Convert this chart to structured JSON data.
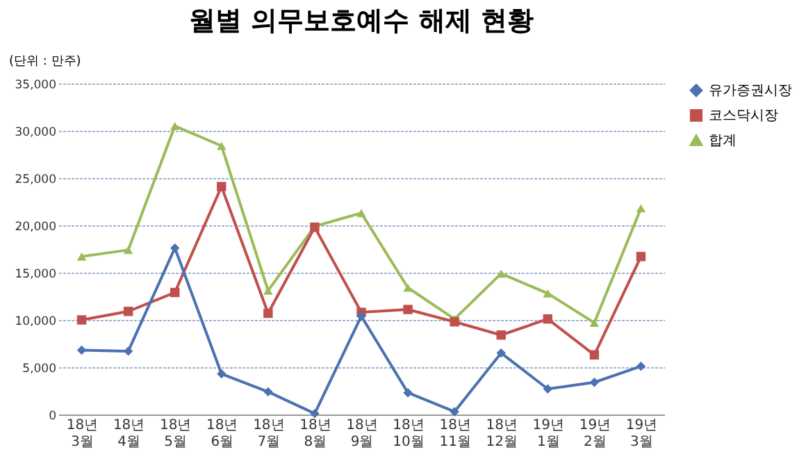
{
  "chart_data": {
    "type": "line",
    "title": "월별 의무보호예수 해제 현황",
    "ylabel": "(단위 : 만주)",
    "categories": [
      "18년 3월",
      "18년 4월",
      "18년 5월",
      "18년 6월",
      "18년 7월",
      "18년 8월",
      "18년 9월",
      "18년 10월",
      "18년 11월",
      "18년 12월",
      "19년 1월",
      "19년 2월",
      "19년 3월"
    ],
    "series": [
      {
        "name": "유가증권시장",
        "color": "#4a72b0",
        "marker": "diamond",
        "values": [
          6800,
          6700,
          17600,
          4300,
          2400,
          100,
          10400,
          2300,
          300,
          6500,
          2700,
          3400,
          5100
        ]
      },
      {
        "name": "코스닥시장",
        "color": "#c0504d",
        "marker": "square",
        "values": [
          10000,
          10900,
          12900,
          24100,
          10700,
          19800,
          10800,
          11100,
          9800,
          8400,
          10100,
          6300,
          16700
        ]
      },
      {
        "name": "합계",
        "color": "#9bbb59",
        "marker": "triangle",
        "values": [
          16700,
          17400,
          30500,
          28400,
          13100,
          19900,
          21300,
          13400,
          10100,
          14900,
          12800,
          9700,
          21800
        ]
      }
    ],
    "ylim": [
      0,
      35000
    ],
    "yticks": [
      0,
      {
        "value": 5000,
        "label": "5,000"
      },
      {
        "value": 10000,
        "label": "10,000"
      },
      {
        "value": 15000,
        "label": "15,000"
      },
      {
        "value": 20000,
        "label": "20,000"
      },
      {
        "value": 25000,
        "label": "25,000"
      },
      {
        "value": 30000,
        "label": "30,000"
      },
      {
        "value": 35000,
        "label": "35,000"
      }
    ],
    "grid": "y",
    "legend": "right",
    "line_style": "solid"
  }
}
